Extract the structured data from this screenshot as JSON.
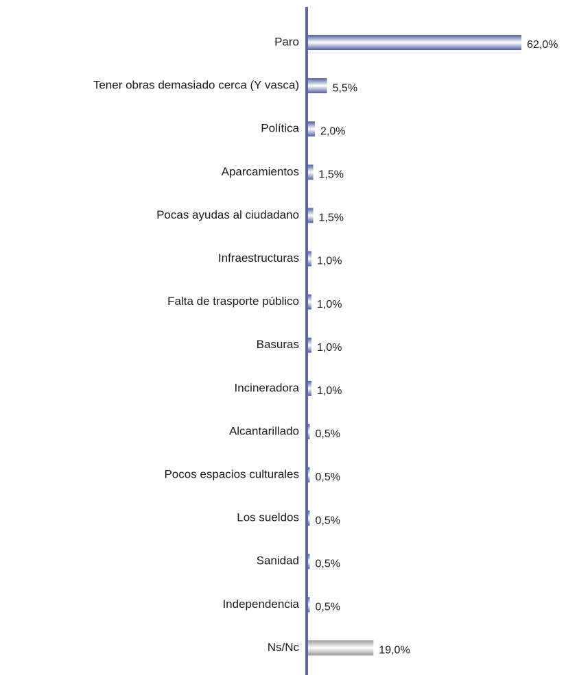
{
  "chart_data": {
    "type": "bar",
    "orientation": "horizontal",
    "categories": [
      "Paro",
      "Tener obras demasiado cerca (Y vasca)",
      "Política",
      "Aparcamientos",
      "Pocas ayudas al ciudadano",
      "Infraestructuras",
      "Falta de trasporte público",
      "Basuras",
      "Incineradora",
      "Alcantarillado",
      "Pocos espacios culturales",
      "Los sueldos",
      "Sanidad",
      "Independencia",
      "Ns/Nc"
    ],
    "values": [
      62.0,
      5.5,
      2.0,
      1.5,
      1.5,
      1.0,
      1.0,
      1.0,
      1.0,
      0.5,
      0.5,
      0.5,
      0.5,
      0.5,
      19.0
    ],
    "value_labels": [
      "62,0%",
      "5,5%",
      "2,0%",
      "1,5%",
      "1,5%",
      "1,0%",
      "1,0%",
      "1,0%",
      "1,0%",
      "0,5%",
      "0,5%",
      "0,5%",
      "0,5%",
      "0,5%",
      "19,0%"
    ],
    "colors": [
      "#4f5f9e",
      "#4f5f9e",
      "#4f5f9e",
      "#4f5f9e",
      "#4f5f9e",
      "#4f5f9e",
      "#4f5f9e",
      "#4f5f9e",
      "#4f5f9e",
      "#4f5f9e",
      "#4f5f9e",
      "#4f5f9e",
      "#4f5f9e",
      "#4f5f9e",
      "#9a9a9a"
    ],
    "axis_color": "#5a69a6"
  }
}
